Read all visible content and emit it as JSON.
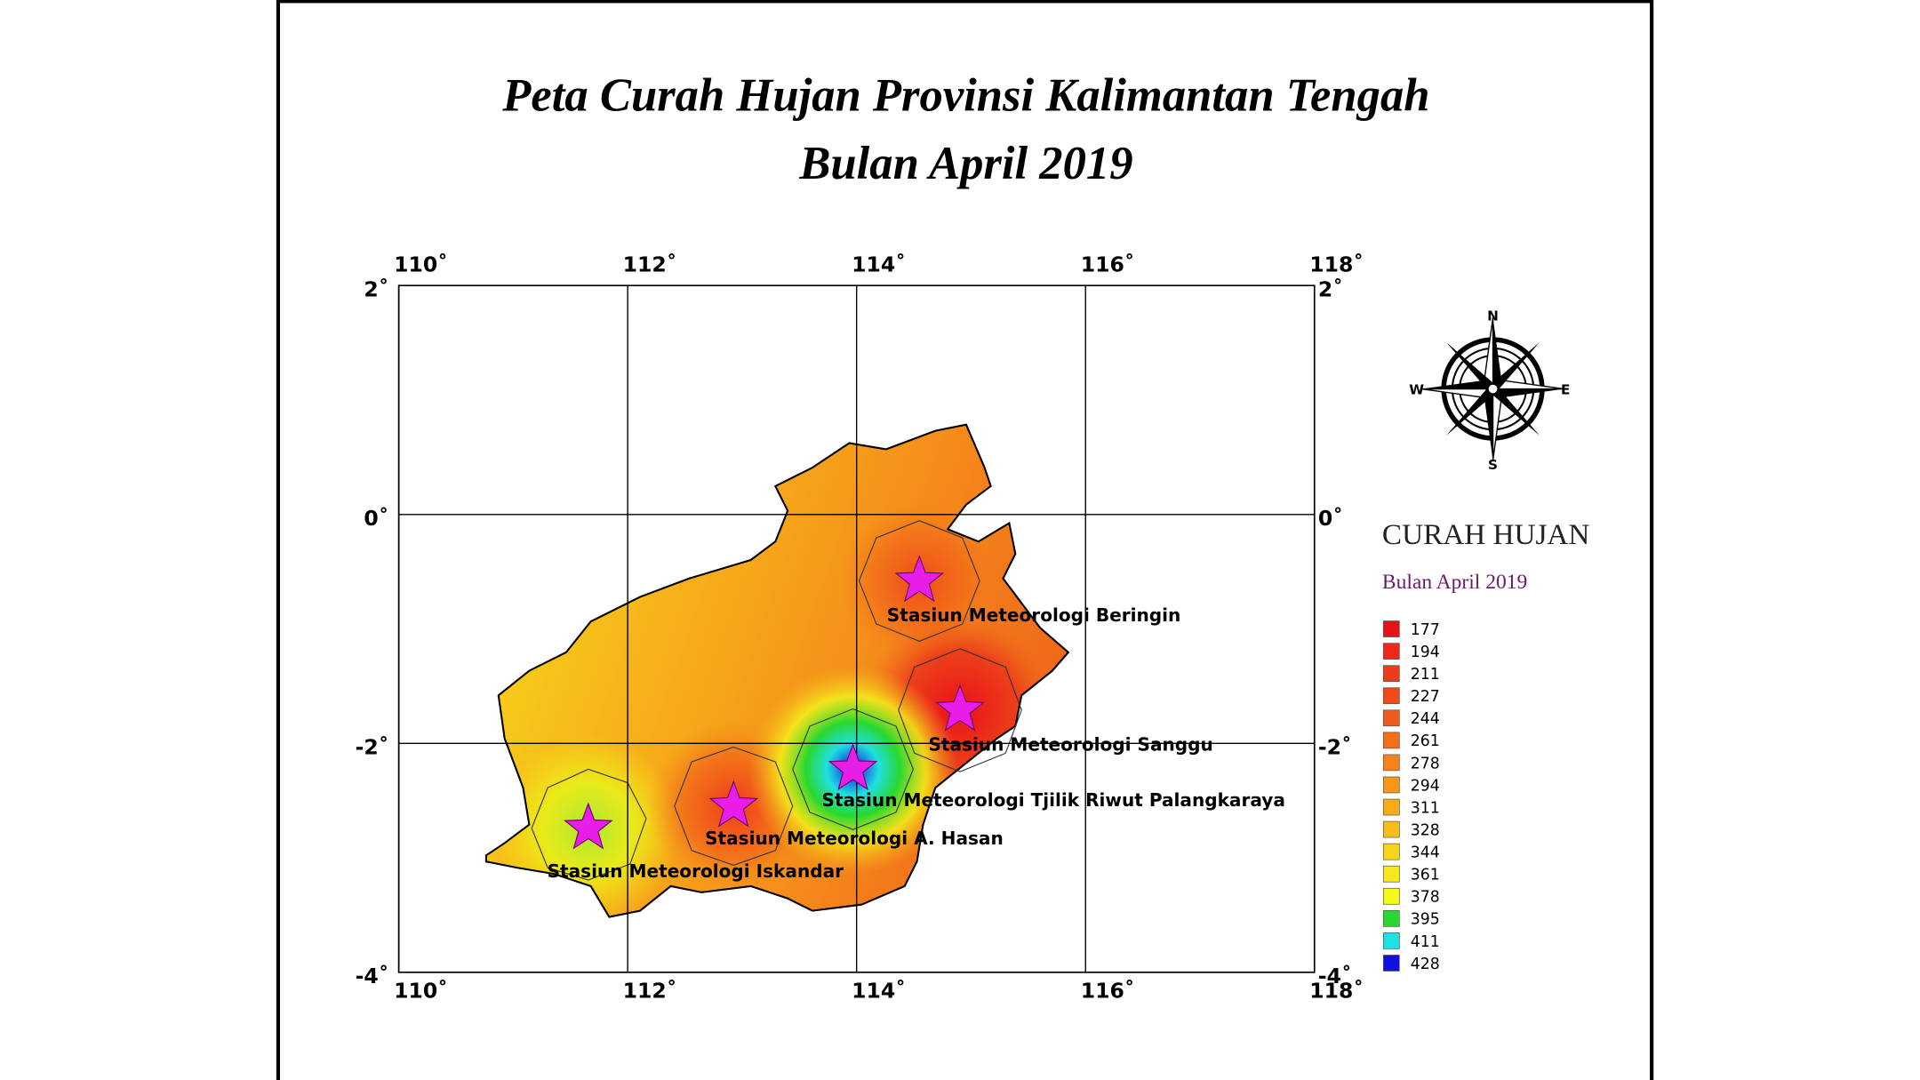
{
  "title": [
    "Peta Curah Hujan Provinsi Kalimantan Tengah",
    "Bulan April 2019"
  ],
  "map": {
    "lon_ticks": [
      {
        "value": 110,
        "label": "110˚"
      },
      {
        "value": 112,
        "label": "112˚"
      },
      {
        "value": 114,
        "label": "114˚"
      },
      {
        "value": 116,
        "label": "116˚"
      },
      {
        "value": 118,
        "label": "118˚"
      }
    ],
    "lat_ticks": [
      {
        "value": 2,
        "label": "2˚"
      },
      {
        "value": 0,
        "label": "0˚"
      },
      {
        "value": -2,
        "label": "-2˚"
      },
      {
        "value": -4,
        "label": "-4˚"
      }
    ],
    "stations": [
      "Stasiun Meteorologi Beringin",
      "Stasiun Meteorologi Sanggu",
      "Stasiun Meteorologi  Tjilik Riwut Palangkaraya",
      "Stasiun Meteorologi A. Hasan",
      "Stasiun Meteorologi Iskandar"
    ]
  },
  "compass": {
    "n": "N",
    "e": "E",
    "s": "S",
    "w": "W"
  },
  "legend": {
    "title": "CURAH HUJAN",
    "subtitle": "Bulan April 2019",
    "items": [
      {
        "value": 177,
        "color": "#e8101a"
      },
      {
        "value": 194,
        "color": "#ec2a1a"
      },
      {
        "value": 211,
        "color": "#ec3a1a"
      },
      {
        "value": 227,
        "color": "#ef4a1a"
      },
      {
        "value": 244,
        "color": "#f05a1a"
      },
      {
        "value": 261,
        "color": "#f46e1a"
      },
      {
        "value": 278,
        "color": "#f5821a"
      },
      {
        "value": 294,
        "color": "#f6961a"
      },
      {
        "value": 311,
        "color": "#f7aa1a"
      },
      {
        "value": 328,
        "color": "#f7be1a"
      },
      {
        "value": 344,
        "color": "#f8d41a"
      },
      {
        "value": 361,
        "color": "#f8e81a"
      },
      {
        "value": 378,
        "color": "#f4f71a"
      },
      {
        "value": 395,
        "color": "#28d830"
      },
      {
        "value": 411,
        "color": "#20e0e0"
      },
      {
        "value": 428,
        "color": "#1010e0"
      }
    ]
  }
}
